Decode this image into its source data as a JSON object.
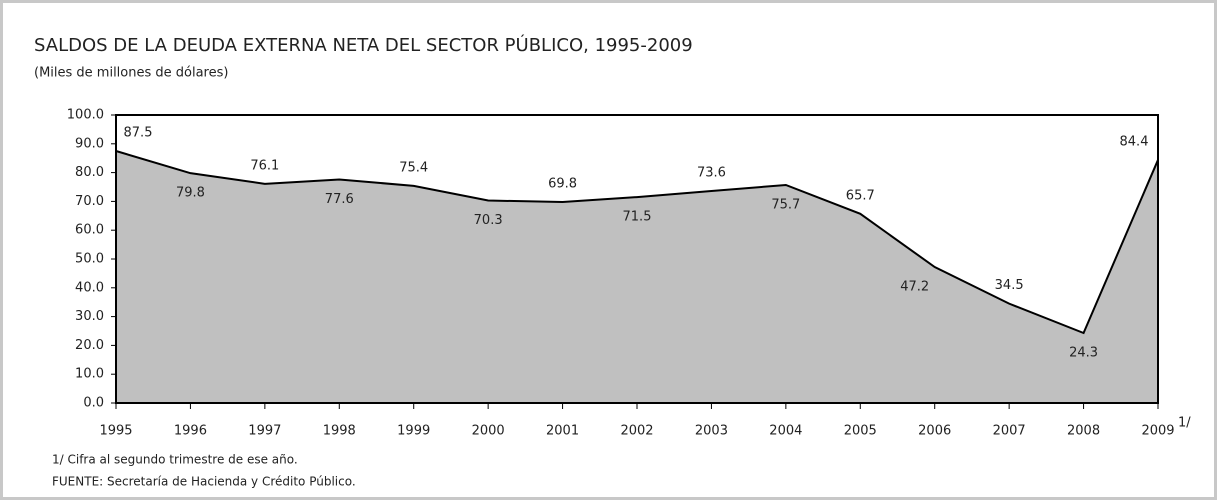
{
  "chart_data": {
    "type": "area",
    "title": "SALDOS DE LA DEUDA EXTERNA NETA DEL SECTOR PÚBLICO, 1995-2009",
    "subtitle": "(Miles de millones de dólares)",
    "categories": [
      "1995",
      "1996",
      "1997",
      "1998",
      "1999",
      "2000",
      "2001",
      "2002",
      "2003",
      "2004",
      "2005",
      "2006",
      "2007",
      "2008",
      "2009"
    ],
    "x_note": "1/",
    "values": [
      87.5,
      79.8,
      76.1,
      77.6,
      75.4,
      70.3,
      69.8,
      71.5,
      73.6,
      75.7,
      65.7,
      47.2,
      34.5,
      24.3,
      84.4
    ],
    "color": "#c0c0c0",
    "line_color": "#000000",
    "ylim": [
      0,
      100
    ],
    "yticks": [
      {
        "value": 0,
        "label": "0.0"
      },
      {
        "value": 10,
        "label": "10.0"
      },
      {
        "value": 20,
        "label": "20.0"
      },
      {
        "value": 30,
        "label": "30.0"
      },
      {
        "value": 40,
        "label": "40.0"
      },
      {
        "value": 50,
        "label": "50.0"
      },
      {
        "value": 60,
        "label": "60.0"
      },
      {
        "value": 70,
        "label": "70.0"
      },
      {
        "value": 80,
        "label": "80.0"
      },
      {
        "value": 90,
        "label": "90.0"
      },
      {
        "value": 100,
        "label": "100.0"
      }
    ],
    "notes": [
      "1/ Cifra al segundo trimestre de ese año.",
      "FUENTE: Secretaría de Hacienda y Crédito Público."
    ]
  }
}
